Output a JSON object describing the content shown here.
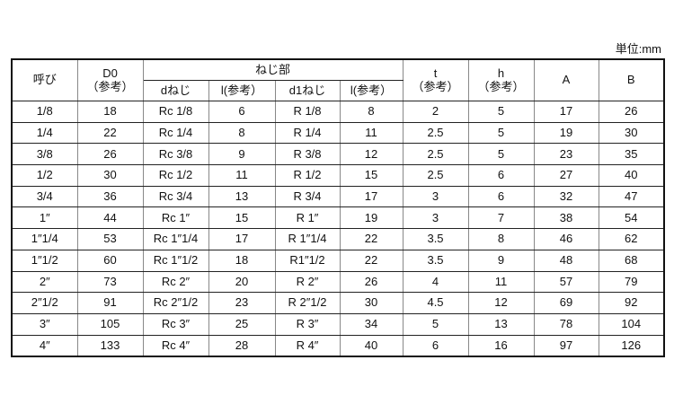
{
  "unit": "単位:mm",
  "header": {
    "yobi": "呼び",
    "d0": "D0",
    "d0_sub": "（参考）",
    "neji": "ねじ部",
    "d_neji": "dねじ",
    "l1": "l(参考）",
    "d1_neji": "d1ねじ",
    "l2": "l(参考）",
    "t": "t",
    "t_sub": "（参考）",
    "h": "h",
    "h_sub": "（参考）",
    "a": "A",
    "b": "B"
  },
  "rows": [
    [
      "1/8",
      "18",
      "Rc 1/8",
      "6",
      "R 1/8",
      "8",
      "2",
      "5",
      "17",
      "26"
    ],
    [
      "1/4",
      "22",
      "Rc 1/4",
      "8",
      "R 1/4",
      "11",
      "2.5",
      "5",
      "19",
      "30"
    ],
    [
      "3/8",
      "26",
      "Rc 3/8",
      "9",
      "R 3/8",
      "12",
      "2.5",
      "5",
      "23",
      "35"
    ],
    [
      "1/2",
      "30",
      "Rc 1/2",
      "11",
      "R 1/2",
      "15",
      "2.5",
      "6",
      "27",
      "40"
    ],
    [
      "3/4",
      "36",
      "Rc 3/4",
      "13",
      "R 3/4",
      "17",
      "3",
      "6",
      "32",
      "47"
    ],
    [
      "1″",
      "44",
      "Rc 1″",
      "15",
      "R 1″",
      "19",
      "3",
      "7",
      "38",
      "54"
    ],
    [
      "1″1/4",
      "53",
      "Rc 1″1/4",
      "17",
      "R 1″1/4",
      "22",
      "3.5",
      "8",
      "46",
      "62"
    ],
    [
      "1″1/2",
      "60",
      "Rc 1″1/2",
      "18",
      "R1″1/2",
      "22",
      "3.5",
      "9",
      "48",
      "68"
    ],
    [
      "2″",
      "73",
      "Rc 2″",
      "20",
      "R 2″",
      "26",
      "4",
      "11",
      "57",
      "79"
    ],
    [
      "2″1/2",
      "91",
      "Rc 2″1/2",
      "23",
      "R 2″1/2",
      "30",
      "4.5",
      "12",
      "69",
      "92"
    ],
    [
      "3″",
      "105",
      "Rc 3″",
      "25",
      "R 3″",
      "34",
      "5",
      "13",
      "78",
      "104"
    ],
    [
      "4″",
      "133",
      "Rc 4″",
      "28",
      "R 4″",
      "40",
      "6",
      "16",
      "97",
      "126"
    ]
  ]
}
